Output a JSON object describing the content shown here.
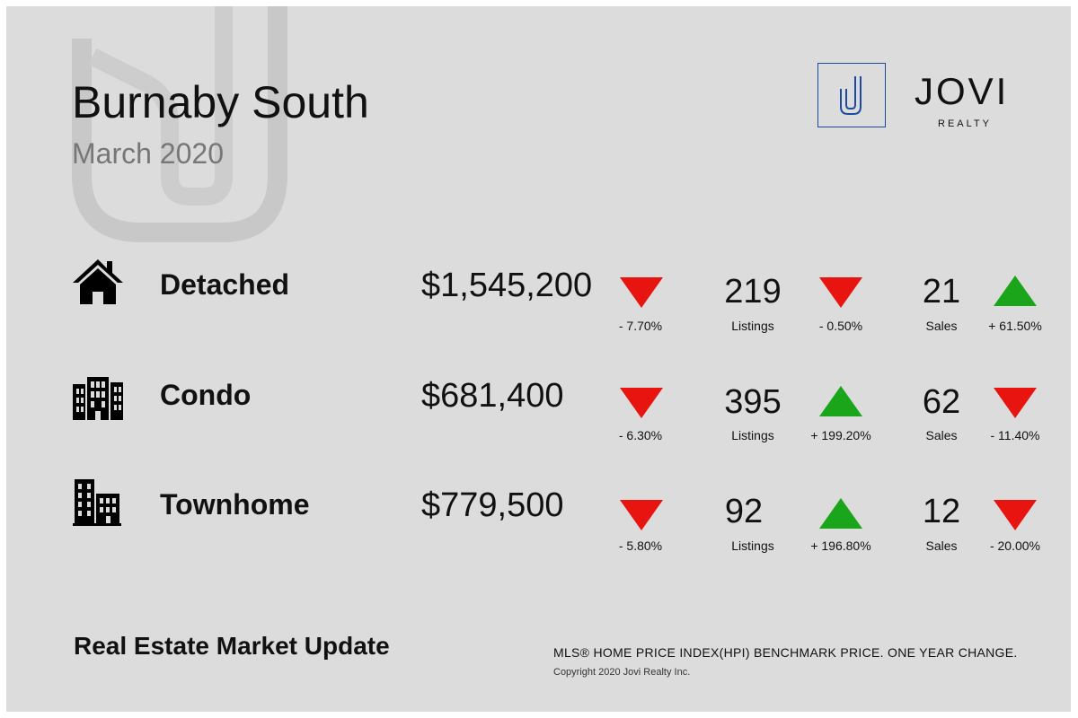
{
  "header": {
    "title": "Burnaby South",
    "subtitle": "March 2020"
  },
  "logo": {
    "letter": "J",
    "name": "JOVI",
    "tagline": "REALTY"
  },
  "rows": [
    {
      "category": "Detached",
      "icon": "house-icon",
      "price": "$1,545,200",
      "price_change": "- 7.70%",
      "price_trend": "down",
      "listings": "219",
      "listings_label": "Listings",
      "listings_change": "- 0.50%",
      "listings_trend": "down",
      "sales": "21",
      "sales_label": "Sales",
      "sales_change": "+ 61.50%",
      "sales_trend": "up"
    },
    {
      "category": "Condo",
      "icon": "condo-building-icon",
      "price": "$681,400",
      "price_change": "- 6.30%",
      "price_trend": "down",
      "listings": "395",
      "listings_label": "Listings",
      "listings_change": "+ 199.20%",
      "listings_trend": "up",
      "sales": "62",
      "sales_label": "Sales",
      "sales_change": "- 11.40%",
      "sales_trend": "down"
    },
    {
      "category": "Townhome",
      "icon": "townhome-building-icon",
      "price": "$779,500",
      "price_change": "- 5.80%",
      "price_trend": "down",
      "listings": "92",
      "listings_label": "Listings",
      "listings_change": "+ 196.80%",
      "listings_trend": "up",
      "sales": "12",
      "sales_label": "Sales",
      "sales_change": "- 20.00%",
      "sales_trend": "down"
    }
  ],
  "footer": {
    "title": "Real Estate Market Update",
    "note": "MLS® HOME PRICE INDEX(HPI) BENCHMARK PRICE. ONE YEAR CHANGE.",
    "copyright": "Copyright 2020 Jovi Realty Inc."
  },
  "colors": {
    "background": "#dcdcdc",
    "down": "#e8140f",
    "up": "#1aa51a",
    "logo_accent": "#1c4aa0"
  }
}
